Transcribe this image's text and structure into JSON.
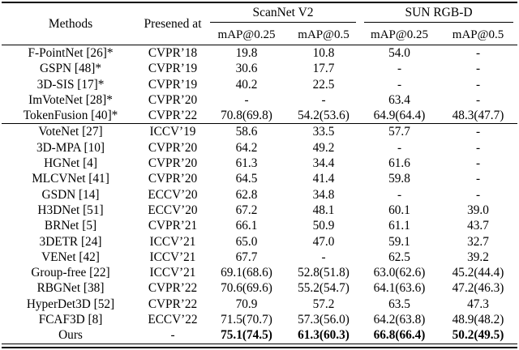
{
  "colors": {
    "text": "#000000",
    "background": "#ffffff",
    "rule": "#000000"
  },
  "table": {
    "headers": {
      "methods": "Methods",
      "presented_at": "Presened at",
      "group_scannet": "ScanNet V2",
      "group_sunrgbd": "SUN RGB-D",
      "sub_labels": [
        "mAP@0.25",
        "mAP@0.5",
        "mAP@0.25",
        "mAP@0.5"
      ]
    },
    "groups": [
      {
        "rows": [
          {
            "method": "F-PointNet [26]*",
            "venue": "CVPR’18",
            "values": [
              "19.8",
              "10.8",
              "54.0",
              "-"
            ],
            "bold": false
          },
          {
            "method": "GSPN [48]*",
            "venue": "CVPR’19",
            "values": [
              "30.6",
              "17.7",
              "-",
              "-"
            ],
            "bold": false
          },
          {
            "method": "3D-SIS [17]*",
            "venue": "CVPR’19",
            "values": [
              "40.2",
              "22.5",
              "-",
              "-"
            ],
            "bold": false
          },
          {
            "method": "ImVoteNet [28]*",
            "venue": "CVPR’20",
            "values": [
              "-",
              "-",
              "63.4",
              "-"
            ],
            "bold": false
          },
          {
            "method": "TokenFusion [40]*",
            "venue": "CVPR’22",
            "values": [
              "70.8(69.8)",
              "54.2(53.6)",
              "64.9(64.4)",
              "48.3(47.7)"
            ],
            "bold": false
          }
        ]
      },
      {
        "rows": [
          {
            "method": "VoteNet [27]",
            "venue": "ICCV’19",
            "values": [
              "58.6",
              "33.5",
              "57.7",
              "-"
            ],
            "bold": false
          },
          {
            "method": "3D-MPA [10]",
            "venue": "CVPR’20",
            "values": [
              "64.2",
              "49.2",
              "-",
              "-"
            ],
            "bold": false
          },
          {
            "method": "HGNet [4]",
            "venue": "CVPR’20",
            "values": [
              "61.3",
              "34.4",
              "61.6",
              "-"
            ],
            "bold": false
          },
          {
            "method": "MLCVNet [41]",
            "venue": "CVPR’20",
            "values": [
              "64.5",
              "41.4",
              "59.8",
              "-"
            ],
            "bold": false
          },
          {
            "method": "GSDN [14]",
            "venue": "ECCV’20",
            "values": [
              "62.8",
              "34.8",
              "-",
              "-"
            ],
            "bold": false
          },
          {
            "method": "H3DNet [51]",
            "venue": "ECCV’20",
            "values": [
              "67.2",
              "48.1",
              "60.1",
              "39.0"
            ],
            "bold": false
          },
          {
            "method": "BRNet [5]",
            "venue": "CVPR’21",
            "values": [
              "66.1",
              "50.9",
              "61.1",
              "43.7"
            ],
            "bold": false
          },
          {
            "method": "3DETR [24]",
            "venue": "ICCV’21",
            "values": [
              "65.0",
              "47.0",
              "59.1",
              "32.7"
            ],
            "bold": false
          },
          {
            "method": "VENet [42]",
            "venue": "ICCV’21",
            "values": [
              "67.7",
              "-",
              "62.5",
              "39.2"
            ],
            "bold": false
          },
          {
            "method": "Group-free [22]",
            "venue": "ICCV’21",
            "values": [
              "69.1(68.6)",
              "52.8(51.8)",
              "63.0(62.6)",
              "45.2(44.4)"
            ],
            "bold": false
          },
          {
            "method": "RBGNet [38]",
            "venue": "CVPR’22",
            "values": [
              "70.6(69.6)",
              "55.2(54.7)",
              "64.1(63.6)",
              "47.2(46.3)"
            ],
            "bold": false
          },
          {
            "method": "HyperDet3D [52]",
            "venue": "CVPR’22",
            "values": [
              "70.9",
              "57.2",
              "63.5",
              "47.3"
            ],
            "bold": false
          },
          {
            "method": "FCAF3D [8]",
            "venue": "ECCV’22",
            "values": [
              "71.5(70.7)",
              "57.3(56.0)",
              "64.2(63.8)",
              "48.9(48.2)"
            ],
            "bold": false
          },
          {
            "method": "Ours",
            "venue": "-",
            "values": [
              "75.1(74.5)",
              "61.3(60.3)",
              "66.8(66.4)",
              "50.2(49.5)"
            ],
            "bold": true
          }
        ]
      }
    ]
  }
}
